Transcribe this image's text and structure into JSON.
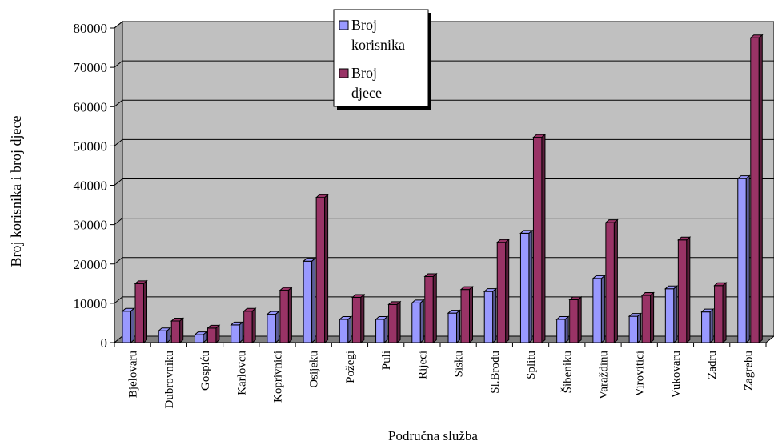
{
  "chart_data": {
    "type": "bar",
    "xlabel": "Područna služba",
    "ylabel": "Broj korisnika i broj djece",
    "ylim": [
      0,
      80000
    ],
    "yticks": [
      0,
      10000,
      20000,
      30000,
      40000,
      50000,
      60000,
      70000,
      80000
    ],
    "grid": true,
    "legend_position": "top-center",
    "categories": [
      "Bjelovaru",
      "Dubrovniku",
      "Gospiću",
      "Karlovcu",
      "Koprivnici",
      "Osijeku",
      "Požegi",
      "Puli",
      "Rijeci",
      "Sisku",
      "Sl.Brodu",
      "Splitu",
      "Šibeniku",
      "Varaždinu",
      "Virovitici",
      "Vukovaru",
      "Zadru",
      "Zagrebu"
    ],
    "series": [
      {
        "name": "Broj korisnika",
        "color": "#9999ff",
        "values": [
          8000,
          3000,
          2000,
          4500,
          7200,
          20700,
          5900,
          5900,
          10100,
          7500,
          13000,
          27800,
          5900,
          16300,
          6700,
          13700,
          7800,
          41700
        ]
      },
      {
        "name": "Broj djece",
        "color": "#993366",
        "values": [
          15000,
          5500,
          3700,
          8000,
          13300,
          36900,
          11500,
          9700,
          16800,
          13500,
          25500,
          52200,
          10900,
          30500,
          12000,
          26100,
          14500,
          77500
        ]
      }
    ],
    "legend_labels": [
      [
        "Broj",
        "korisnika"
      ],
      [
        "Broj",
        "djece"
      ]
    ]
  }
}
